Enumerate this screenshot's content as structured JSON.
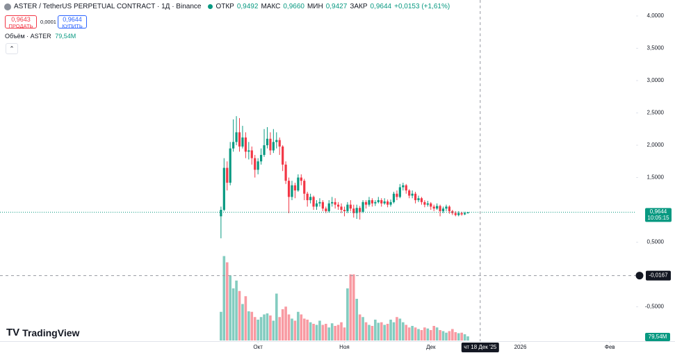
{
  "header": {
    "symbol": "ASTER / TetherUS PERPETUAL CONTRACT · 1Д · Binance",
    "open_label": "ОТКР",
    "open": "0,9492",
    "high_label": "МАКС",
    "high": "0,9660",
    "low_label": "МИН",
    "low": "0,9427",
    "close_label": "ЗАКР",
    "close": "0,9644",
    "change": "+0,0153 (+1,61%)"
  },
  "trade": {
    "sell_price": "0,9643",
    "sell_label": "ПРОДАТЬ",
    "spread": "0,0001",
    "buy_price": "0,9644",
    "buy_label": "КУПИТЬ"
  },
  "volume_legend": {
    "label": "Объём · ASTER",
    "value": "79,54M"
  },
  "logo": "TradingView",
  "chart_data": {
    "type": "candlestick",
    "up_color": "#089981",
    "down_color": "#f23645",
    "x": [
      0,
      1,
      2,
      3,
      4,
      5,
      6,
      7,
      8,
      9,
      10,
      11,
      12,
      13,
      14,
      15,
      16,
      17,
      18,
      19,
      20,
      21,
      22,
      23,
      24,
      25,
      26,
      27,
      28,
      29,
      30,
      31,
      32,
      33,
      34,
      35,
      36,
      37,
      38,
      39,
      40,
      41,
      42,
      43,
      44,
      45,
      46,
      47,
      48,
      49,
      50,
      51,
      52,
      53,
      54,
      55,
      56,
      57,
      58,
      59,
      60,
      61,
      62,
      63,
      64,
      65,
      66,
      67,
      68,
      69,
      70,
      71,
      72,
      73,
      74,
      75,
      76,
      77,
      78,
      79,
      80
    ],
    "open": [
      0.9,
      1.0,
      1.65,
      1.42,
      1.95,
      2.05,
      2.2,
      1.98,
      2.12,
      1.9,
      1.92,
      1.8,
      1.62,
      1.75,
      1.85,
      2.0,
      2.1,
      1.92,
      2.05,
      2.08,
      1.98,
      1.7,
      1.45,
      1.2,
      1.38,
      1.3,
      1.5,
      1.45,
      1.25,
      1.15,
      1.2,
      1.05,
      1.1,
      1.12,
      1.02,
      0.98,
      1.1,
      1.12,
      1.08,
      1.05,
      1.0,
      0.98,
      1.08,
      1.02,
      0.95,
      1.03,
      0.97,
      1.12,
      1.08,
      1.15,
      1.1,
      1.12,
      1.15,
      1.1,
      1.13,
      1.08,
      1.12,
      1.25,
      1.2,
      1.35,
      1.38,
      1.3,
      1.22,
      1.25,
      1.15,
      1.18,
      1.12,
      1.08,
      1.1,
      1.05,
      1.02,
      1.06,
      0.98,
      1.02,
      1.05,
      0.98,
      0.95,
      0.92,
      0.95,
      0.93,
      0.9492
    ],
    "high": [
      1.05,
      1.8,
      1.75,
      2.05,
      2.4,
      2.45,
      2.42,
      2.3,
      2.2,
      2.05,
      1.98,
      1.85,
      1.8,
      1.95,
      2.25,
      2.28,
      2.2,
      2.25,
      2.2,
      2.12,
      2.0,
      1.75,
      1.5,
      1.45,
      1.42,
      1.55,
      1.55,
      1.48,
      1.28,
      1.25,
      1.22,
      1.15,
      1.18,
      1.15,
      1.05,
      1.15,
      1.2,
      1.18,
      1.12,
      1.1,
      1.05,
      1.12,
      1.15,
      1.08,
      1.08,
      1.06,
      1.15,
      1.15,
      1.2,
      1.18,
      1.15,
      1.2,
      1.18,
      1.18,
      1.16,
      1.16,
      1.28,
      1.3,
      1.4,
      1.42,
      1.4,
      1.32,
      1.3,
      1.28,
      1.22,
      1.2,
      1.15,
      1.14,
      1.12,
      1.08,
      1.1,
      1.08,
      1.05,
      1.08,
      1.07,
      1.0,
      0.98,
      0.98,
      0.97,
      0.97,
      0.966
    ],
    "low": [
      0.56,
      0.98,
      1.3,
      1.38,
      1.9,
      2.0,
      1.9,
      1.95,
      1.8,
      1.78,
      1.7,
      1.5,
      1.55,
      1.7,
      1.82,
      1.95,
      1.85,
      1.88,
      1.95,
      1.85,
      1.6,
      1.4,
      0.95,
      1.15,
      1.18,
      1.28,
      1.38,
      1.15,
      1.05,
      1.1,
      1.0,
      1.0,
      1.05,
      0.98,
      0.95,
      0.96,
      1.05,
      1.02,
      1.0,
      0.95,
      0.9,
      0.95,
      0.98,
      0.88,
      0.86,
      0.85,
      0.95,
      1.02,
      1.05,
      1.05,
      1.06,
      1.1,
      1.05,
      1.08,
      1.04,
      1.05,
      1.1,
      1.15,
      1.18,
      1.3,
      1.25,
      1.18,
      1.18,
      1.1,
      1.12,
      1.08,
      1.04,
      1.05,
      1.0,
      0.98,
      1.0,
      0.9,
      0.95,
      0.98,
      0.94,
      0.92,
      0.9,
      0.9,
      0.91,
      0.92,
      0.9427
    ],
    "close": [
      1.0,
      1.65,
      1.42,
      1.95,
      2.05,
      2.2,
      1.98,
      2.12,
      1.9,
      1.92,
      1.8,
      1.62,
      1.75,
      1.85,
      2.0,
      2.1,
      1.92,
      2.05,
      2.08,
      1.98,
      1.7,
      1.45,
      1.2,
      1.38,
      1.3,
      1.5,
      1.45,
      1.25,
      1.15,
      1.2,
      1.05,
      1.1,
      1.12,
      1.02,
      0.98,
      1.1,
      1.12,
      1.08,
      1.05,
      1.0,
      0.98,
      1.08,
      1.02,
      0.95,
      1.03,
      0.97,
      1.12,
      1.08,
      1.15,
      1.1,
      1.12,
      1.15,
      1.1,
      1.13,
      1.08,
      1.12,
      1.25,
      1.2,
      1.35,
      1.38,
      1.3,
      1.22,
      1.25,
      1.15,
      1.18,
      1.12,
      1.08,
      1.1,
      1.05,
      1.02,
      1.06,
      0.98,
      1.02,
      1.05,
      0.98,
      0.95,
      0.92,
      0.95,
      0.93,
      0.95,
      0.9644
    ],
    "volume": [
      550,
      1620,
      1500,
      1250,
      1000,
      1150,
      950,
      700,
      850,
      560,
      550,
      450,
      400,
      450,
      500,
      520,
      480,
      380,
      900,
      450,
      600,
      650,
      500,
      420,
      380,
      550,
      500,
      420,
      400,
      350,
      320,
      300,
      380,
      300,
      320,
      250,
      330,
      280,
      300,
      350,
      250,
      1000,
      1270,
      1270,
      800,
      500,
      450,
      350,
      300,
      280,
      400,
      340,
      350,
      300,
      320,
      400,
      350,
      450,
      420,
      350,
      300,
      250,
      280,
      250,
      220,
      200,
      250,
      230,
      200,
      280,
      250,
      200,
      180,
      150,
      180,
      220,
      160,
      140,
      150,
      120,
      79.54
    ],
    "last_volume_label": "79,54M",
    "last_price": {
      "value": 0.9644,
      "label": "0,9644"
    },
    "countdown": "10:05:15",
    "crosshair": {
      "y": {
        "value": -0.0167,
        "label": "-0,0167"
      },
      "x": {
        "value": 84,
        "label": "чт 18 Дек '25"
      }
    },
    "xlim": [
      -71.6,
      134.5
    ],
    "xticks": [
      {
        "value": 12,
        "label": "Окт"
      },
      {
        "value": 40,
        "label": "Ноя"
      },
      {
        "value": 68,
        "label": "Дек"
      },
      {
        "value": 97,
        "label": "2026"
      },
      {
        "value": 126,
        "label": "Фев"
      }
    ],
    "ylim": [
      -1.075,
      4.247
    ],
    "yticks": [
      {
        "value": -0.5,
        "label": "-0,5000"
      },
      {
        "value": 0.5,
        "label": "0,5000"
      },
      {
        "value": 1.5,
        "label": "1,5000"
      },
      {
        "value": 2.0,
        "label": "2,0000"
      },
      {
        "value": 2.5,
        "label": "2,5000"
      },
      {
        "value": 3.0,
        "label": "3,0000"
      },
      {
        "value": 3.5,
        "label": "3,5000"
      },
      {
        "value": 4.0,
        "label": "4,0000"
      }
    ],
    "grid": false
  }
}
